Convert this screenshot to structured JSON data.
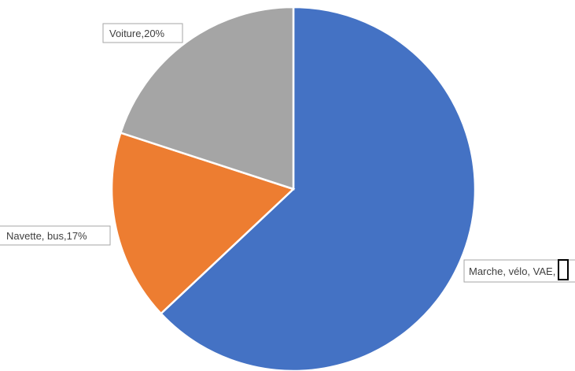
{
  "chart_data": {
    "type": "pie",
    "slices": [
      {
        "label": "Marche, vélo, VAE",
        "value": 63,
        "color": "#4472c4",
        "data_label": "Marche, vélo, VAE,"
      },
      {
        "label": "Navette, bus",
        "value": 17,
        "color": "#ed7d31",
        "data_label": "Navette, bus,17%"
      },
      {
        "label": "Voiture",
        "value": 20,
        "color": "#a5a5a5",
        "data_label": "Voiture,20%"
      }
    ]
  }
}
